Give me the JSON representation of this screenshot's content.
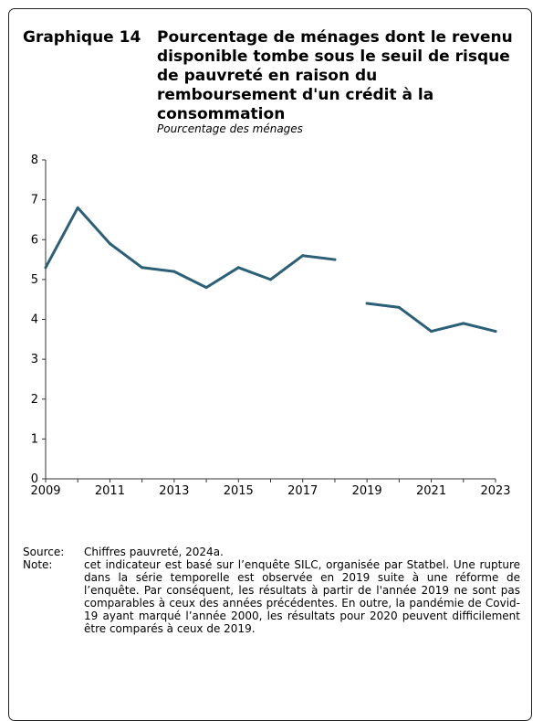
{
  "header": {
    "label": "Graphique 14",
    "title": "Pourcentage de ménages dont le revenu disponible tombe sous le seuil de risque de pauvreté en raison du remboursement d'un crédit à la consommation",
    "subtitle": "Pourcentage des ménages"
  },
  "chart_data": {
    "type": "line",
    "title": "Pourcentage de ménages dont le revenu disponible tombe sous le seuil de risque de pauvreté en raison du remboursement d'un crédit à la consommation",
    "ylabel": "",
    "xlabel": "",
    "xlim": [
      2009,
      2023
    ],
    "ylim": [
      0,
      8
    ],
    "yticks": [
      0,
      1,
      2,
      3,
      4,
      5,
      6,
      7,
      8
    ],
    "xticks": [
      2009,
      2011,
      2013,
      2015,
      2017,
      2019,
      2021,
      2023
    ],
    "grid": false,
    "color": "#2b6076",
    "segments": [
      {
        "x": [
          2009,
          2010,
          2011,
          2012,
          2013,
          2014,
          2015,
          2016,
          2017,
          2018
        ],
        "y": [
          5.3,
          6.8,
          5.9,
          5.3,
          5.2,
          4.8,
          5.3,
          5.0,
          5.6,
          5.5
        ]
      },
      {
        "x": [
          2019,
          2020,
          2021,
          2022,
          2023
        ],
        "y": [
          4.4,
          4.3,
          3.7,
          3.9,
          3.7
        ]
      }
    ]
  },
  "footer": {
    "source_label": "Source:",
    "source_text": "Chiffres pauvreté, 2024a.",
    "note_label": "Note:",
    "note_text": "cet indicateur est basé sur l’enquête SILC, organisée par Statbel. Une rupture dans la série temporelle est observée en 2019 suite à une réforme de l’enquête. Par conséquent, les résultats à partir de l'année 2019 ne sont pas comparables à ceux des années précédentes. En outre, la pandémie de Covid-19 ayant marqué l’année 2000, les résultats pour 2020 peuvent difficilement être comparés à ceux de 2019."
  }
}
